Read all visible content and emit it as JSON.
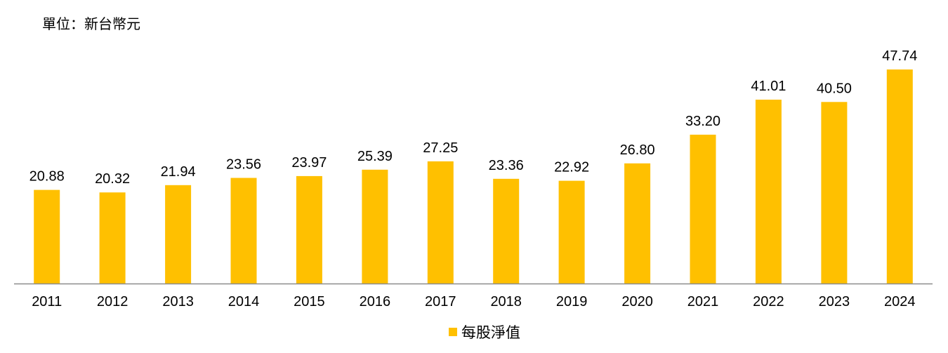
{
  "unit_label": "單位：新台幣元",
  "legend": {
    "label": "每股淨值"
  },
  "colors": {
    "bar": "#FFC000",
    "axis": "#8C8C8C"
  },
  "chart_data": {
    "type": "bar",
    "categories": [
      "2011",
      "2012",
      "2013",
      "2014",
      "2015",
      "2016",
      "2017",
      "2018",
      "2019",
      "2020",
      "2021",
      "2022",
      "2023",
      "2024"
    ],
    "series": [
      {
        "name": "每股淨值",
        "values": [
          20.88,
          20.32,
          21.94,
          23.56,
          23.97,
          25.39,
          27.25,
          23.36,
          22.92,
          26.8,
          33.2,
          41.01,
          40.5,
          47.74
        ],
        "labels": [
          "20.88",
          "20.32",
          "21.94",
          "23.56",
          "23.97",
          "25.39",
          "27.25",
          "23.36",
          "22.92",
          "26.80",
          "33.20",
          "41.01",
          "40.50",
          "47.74"
        ]
      }
    ],
    "ylim": [
      0,
      50
    ],
    "grid": false,
    "legend_position": "bottom"
  }
}
